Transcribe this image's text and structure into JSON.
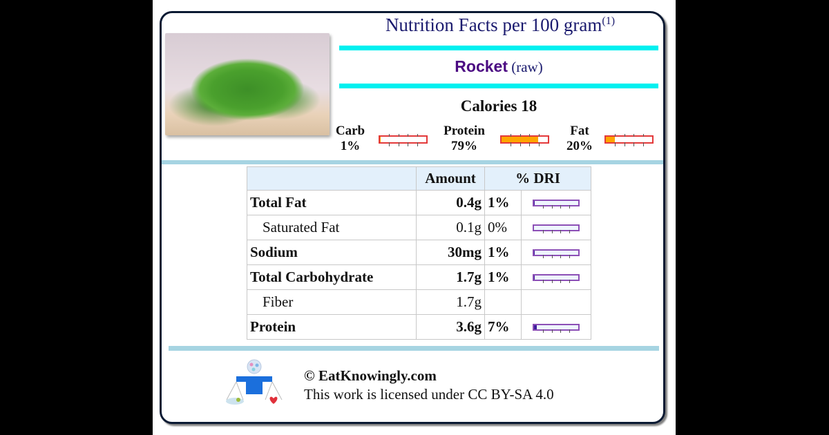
{
  "header": {
    "title": "Nutrition Facts per 100 gram",
    "title_footnote": "(1)",
    "food_name": "Rocket",
    "food_qualifier": "(raw)",
    "calories_label": "Calories 18"
  },
  "image": {
    "icon": "rocket-salad-photo",
    "alt": "Rocket (raw)"
  },
  "macros": [
    {
      "label": "Carb",
      "percent": "1%",
      "value": 1
    },
    {
      "label": "Protein",
      "percent": "79%",
      "value": 79
    },
    {
      "label": "Fat",
      "percent": "20%",
      "value": 20
    }
  ],
  "table": {
    "headers": [
      "",
      "Amount",
      "% DRI"
    ],
    "rows": [
      {
        "label": "Total Fat",
        "amount": "0.4g",
        "dri": "1%",
        "dri_value": 1,
        "bold": true,
        "indent": false
      },
      {
        "label": "Saturated Fat",
        "amount": "0.1g",
        "dri": "0%",
        "dri_value": 0,
        "bold": false,
        "indent": true
      },
      {
        "label": "Sodium",
        "amount": "30mg",
        "dri": "1%",
        "dri_value": 1,
        "bold": true,
        "indent": false
      },
      {
        "label": "Total Carbohydrate",
        "amount": "1.7g",
        "dri": "1%",
        "dri_value": 1,
        "bold": true,
        "indent": false
      },
      {
        "label": "Fiber",
        "amount": "1.7g",
        "dri": "",
        "dri_value": null,
        "bold": false,
        "indent": true
      },
      {
        "label": "Protein",
        "amount": "3.6g",
        "dri": "7%",
        "dri_value": 7,
        "bold": true,
        "indent": false
      }
    ]
  },
  "footer": {
    "copyright": "© EatKnowingly.com",
    "license": "This work is licensed under CC BY-SA 4.0",
    "logo_icon": "scale-person-logo"
  },
  "colors": {
    "title": "#1a1a6e",
    "food_name": "#4b0a82",
    "cyan_rule": "#00f0f0",
    "divider": "#a6d4e2",
    "macro_fill": "#ffa500",
    "macro_border": "#e3393a",
    "dri_border": "#8c4fb6",
    "dri_fill": "#3c1e9c"
  }
}
